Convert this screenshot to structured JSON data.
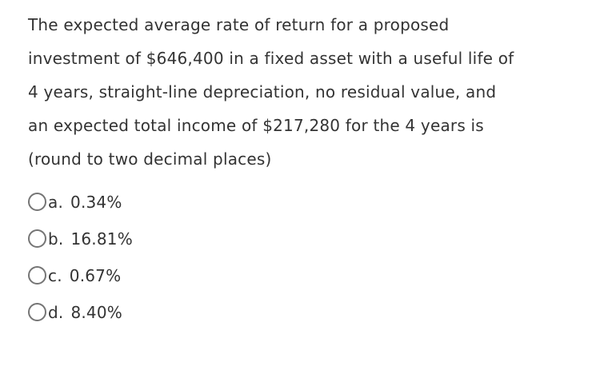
{
  "question": {
    "full_text": "The expected average rate of return for a proposed investment of $646,400 in a fixed asset with a useful life of 4 years, straight-line depreciation, no residual value, and an expected total income of $217,280 for the 4 years is (round to two decimal places)",
    "lines": [
      "The expected average rate of return for a proposed",
      "investment of $646,400 in a fixed asset with a useful life of",
      "4 years, straight-line depreciation, no residual value, and",
      "an expected total income of $217,280 for the 4 years is",
      "(round to two decimal places)"
    ]
  },
  "options": [
    {
      "letter": "a.",
      "value": "0.34%",
      "selected": false
    },
    {
      "letter": "b.",
      "value": "16.81%",
      "selected": false
    },
    {
      "letter": "c.",
      "value": "0.67%",
      "selected": false
    },
    {
      "letter": "d.",
      "value": "8.40%",
      "selected": false
    }
  ],
  "colors": {
    "background": "#ffffff",
    "text": "#333333",
    "radio_border": "#757575"
  }
}
